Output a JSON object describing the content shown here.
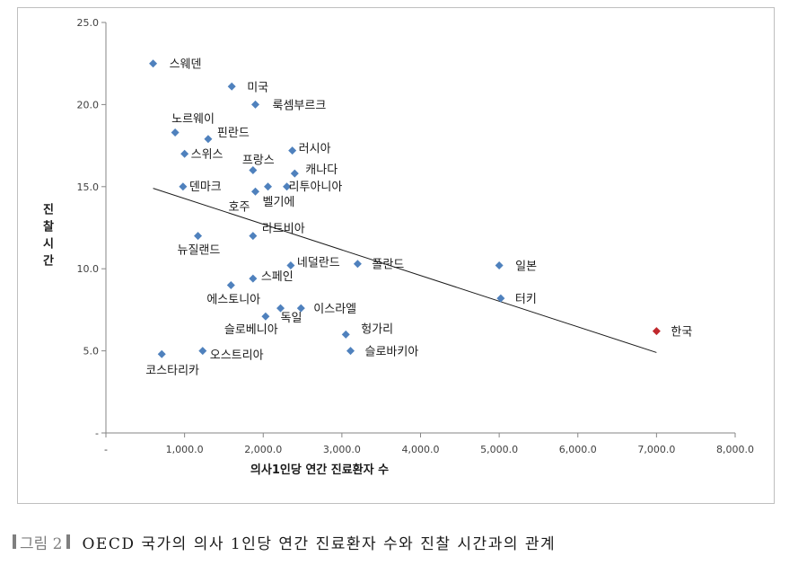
{
  "chart_data": {
    "type": "scatter",
    "title": "",
    "xlabel": "의사1인당 연간 진료환자 수",
    "ylabel": "진찰시간",
    "xlim": [
      0,
      8000
    ],
    "ylim": [
      0,
      25
    ],
    "x_ticks": [
      "-",
      "1,000.0",
      "2,000.0",
      "3,000.0",
      "4,000.0",
      "5,000.0",
      "6,000.0",
      "7,000.0",
      "8,000.0"
    ],
    "y_ticks": [
      "-",
      "5.0",
      "10.0",
      "15.0",
      "20.0",
      "25.0"
    ],
    "grid": false,
    "legend": "none",
    "trendline": {
      "x": [
        600,
        7000
      ],
      "y": [
        14.9,
        4.9
      ]
    },
    "colors": {
      "point": "#4f81bd",
      "highlight": "#c0282d",
      "trendline": "#1a1a1a"
    },
    "points": [
      {
        "label": "스웨덴",
        "x": 600,
        "y": 22.5
      },
      {
        "label": "미국",
        "x": 1600,
        "y": 21.1
      },
      {
        "label": "룩셈부르크",
        "x": 1900,
        "y": 20.0
      },
      {
        "label": "노르웨이",
        "x": 880,
        "y": 18.3
      },
      {
        "label": "핀란드",
        "x": 1300,
        "y": 17.9
      },
      {
        "label": "스위스",
        "x": 1000,
        "y": 17.0
      },
      {
        "label": "러시아",
        "x": 2370,
        "y": 17.2
      },
      {
        "label": "프랑스",
        "x": 1870,
        "y": 16.0
      },
      {
        "label": "캐나다",
        "x": 2400,
        "y": 15.8
      },
      {
        "label": "덴마크",
        "x": 980,
        "y": 15.0
      },
      {
        "label": "호주",
        "x": 1900,
        "y": 14.7
      },
      {
        "label": "벨기에",
        "x": 2060,
        "y": 15.0
      },
      {
        "label": "리투아니아",
        "x": 2300,
        "y": 15.0
      },
      {
        "label": "라트비아",
        "x": 1870,
        "y": 12.0
      },
      {
        "label": "뉴질랜드",
        "x": 1170,
        "y": 12.0
      },
      {
        "label": "네덜란드",
        "x": 2350,
        "y": 10.2
      },
      {
        "label": "폴란드",
        "x": 3200,
        "y": 10.3
      },
      {
        "label": "일본",
        "x": 5000,
        "y": 10.2
      },
      {
        "label": "스페인",
        "x": 1870,
        "y": 9.4
      },
      {
        "label": "에스토니아",
        "x": 1590,
        "y": 9.0
      },
      {
        "label": "터키",
        "x": 5020,
        "y": 8.2
      },
      {
        "label": "이스라엘",
        "x": 2480,
        "y": 7.6
      },
      {
        "label": "독일",
        "x": 2220,
        "y": 7.6
      },
      {
        "label": "슬로베니아",
        "x": 2030,
        "y": 7.1
      },
      {
        "label": "헝가리",
        "x": 3050,
        "y": 6.0
      },
      {
        "label": "한국",
        "x": 7000,
        "y": 6.2,
        "highlight": true
      },
      {
        "label": "오스트리아",
        "x": 1230,
        "y": 5.0
      },
      {
        "label": "슬로바키아",
        "x": 3110,
        "y": 5.0
      },
      {
        "label": "코스타리카",
        "x": 710,
        "y": 4.8
      }
    ]
  },
  "caption": {
    "tag": "그림 2",
    "text": "OECD 국가의 의사 1인당 연간 진료환자 수와 진찰 시간과의 관계"
  }
}
